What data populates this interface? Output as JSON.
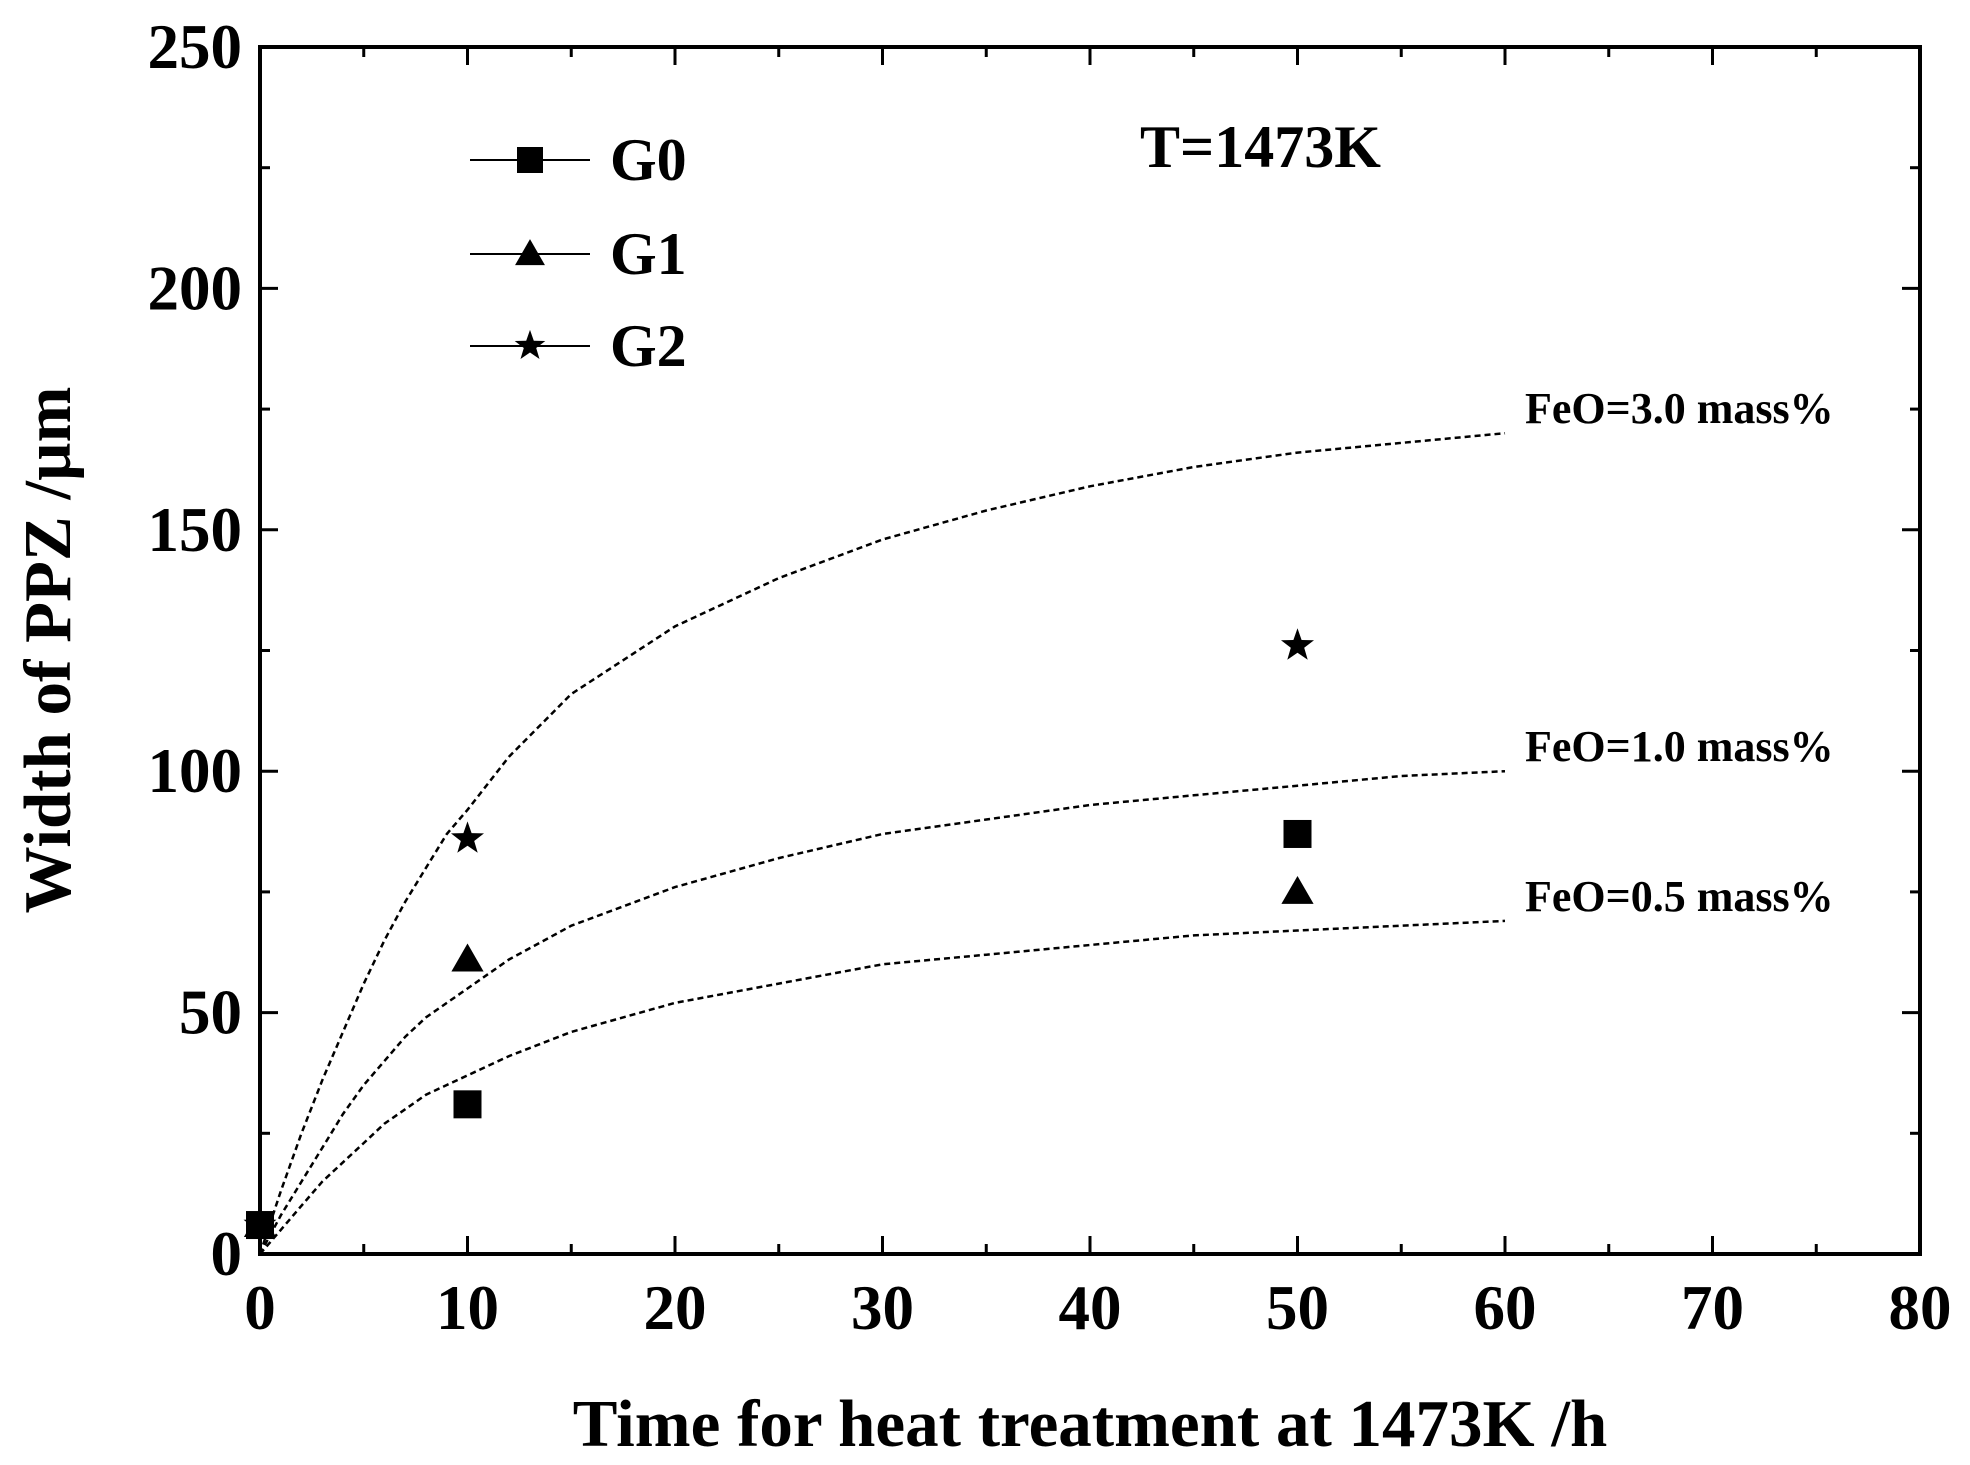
{
  "chart_data": {
    "type": "scatter",
    "title": "",
    "xlabel": "Time for heat treatment at 1473K /h",
    "ylabel": "Width of PPZ /µm",
    "xlim": [
      0,
      80
    ],
    "ylim": [
      0,
      250
    ],
    "xticks": [
      0,
      10,
      20,
      30,
      40,
      50,
      60,
      70,
      80
    ],
    "yticks": [
      0,
      50,
      100,
      150,
      200,
      250
    ],
    "annotation": "T=1473K",
    "legend_position": "top-left",
    "series": [
      {
        "name": "G0",
        "marker": "square",
        "points": [
          [
            0,
            6
          ],
          [
            10,
            31
          ],
          [
            50,
            87
          ]
        ]
      },
      {
        "name": "G1",
        "marker": "triangle",
        "points": [
          [
            0,
            6
          ],
          [
            10,
            61
          ],
          [
            50,
            75
          ]
        ]
      },
      {
        "name": "G2",
        "marker": "star",
        "points": [
          [
            0,
            6
          ],
          [
            10,
            86
          ],
          [
            50,
            126
          ]
        ]
      }
    ],
    "model_curves": [
      {
        "label": "FeO=3.0 mass%",
        "style": "dashed",
        "points": [
          [
            0,
            0
          ],
          [
            1,
            13
          ],
          [
            2,
            25
          ],
          [
            3,
            36
          ],
          [
            4,
            46
          ],
          [
            5,
            56
          ],
          [
            6,
            65
          ],
          [
            7,
            73
          ],
          [
            8,
            80
          ],
          [
            9,
            87
          ],
          [
            10,
            92
          ],
          [
            12,
            103
          ],
          [
            15,
            116
          ],
          [
            20,
            130
          ],
          [
            25,
            140
          ],
          [
            30,
            148
          ],
          [
            35,
            154
          ],
          [
            40,
            159
          ],
          [
            45,
            163
          ],
          [
            50,
            166
          ],
          [
            55,
            168
          ],
          [
            60,
            170
          ]
        ]
      },
      {
        "label": "FeO=1.0 mass%",
        "style": "dashed",
        "points": [
          [
            0,
            0
          ],
          [
            1,
            8
          ],
          [
            2,
            15
          ],
          [
            3,
            22
          ],
          [
            4,
            29
          ],
          [
            5,
            35
          ],
          [
            6,
            40
          ],
          [
            7,
            45
          ],
          [
            8,
            49
          ],
          [
            9,
            52
          ],
          [
            10,
            55
          ],
          [
            12,
            61
          ],
          [
            15,
            68
          ],
          [
            20,
            76
          ],
          [
            25,
            82
          ],
          [
            30,
            87
          ],
          [
            35,
            90
          ],
          [
            40,
            93
          ],
          [
            45,
            95
          ],
          [
            50,
            97
          ],
          [
            55,
            99
          ],
          [
            60,
            100
          ]
        ]
      },
      {
        "label": "FeO=0.5 mass%",
        "style": "dashed",
        "points": [
          [
            0,
            0
          ],
          [
            1,
            5
          ],
          [
            2,
            10
          ],
          [
            3,
            15
          ],
          [
            4,
            19
          ],
          [
            5,
            23
          ],
          [
            6,
            27
          ],
          [
            7,
            30
          ],
          [
            8,
            33
          ],
          [
            9,
            35
          ],
          [
            10,
            37
          ],
          [
            12,
            41
          ],
          [
            15,
            46
          ],
          [
            20,
            52
          ],
          [
            25,
            56
          ],
          [
            30,
            60
          ],
          [
            35,
            62
          ],
          [
            40,
            64
          ],
          [
            45,
            66
          ],
          [
            50,
            67
          ],
          [
            55,
            68
          ],
          [
            60,
            69
          ]
        ]
      }
    ]
  }
}
